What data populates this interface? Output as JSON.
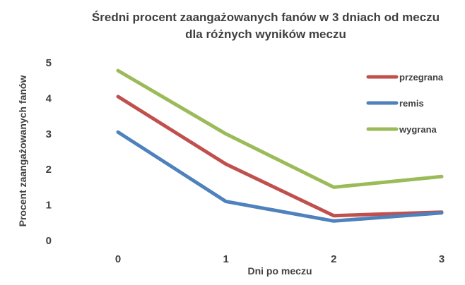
{
  "chart_data": {
    "type": "line",
    "title_lines": [
      "Średni procent zaangażowanych fanów w 3 dniach od meczu",
      "dla różnych wyników meczu"
    ],
    "xlabel": "Dni po meczu",
    "ylabel": "Procent zaangażowanych fanów",
    "x": [
      0,
      1,
      2,
      3
    ],
    "ylim": [
      0,
      5
    ],
    "yticks": [
      0,
      1,
      2,
      3,
      4,
      5
    ],
    "grid": false,
    "legend_position": "right",
    "series": [
      {
        "name": "przegrana",
        "color": "#c0504d",
        "values": [
          4.05,
          2.15,
          0.7,
          0.8
        ]
      },
      {
        "name": "remis",
        "color": "#4f81bd",
        "values": [
          3.05,
          1.1,
          0.55,
          0.78
        ]
      },
      {
        "name": "wygrana",
        "color": "#9bbb59",
        "values": [
          4.78,
          3.0,
          1.5,
          1.8
        ]
      }
    ]
  }
}
